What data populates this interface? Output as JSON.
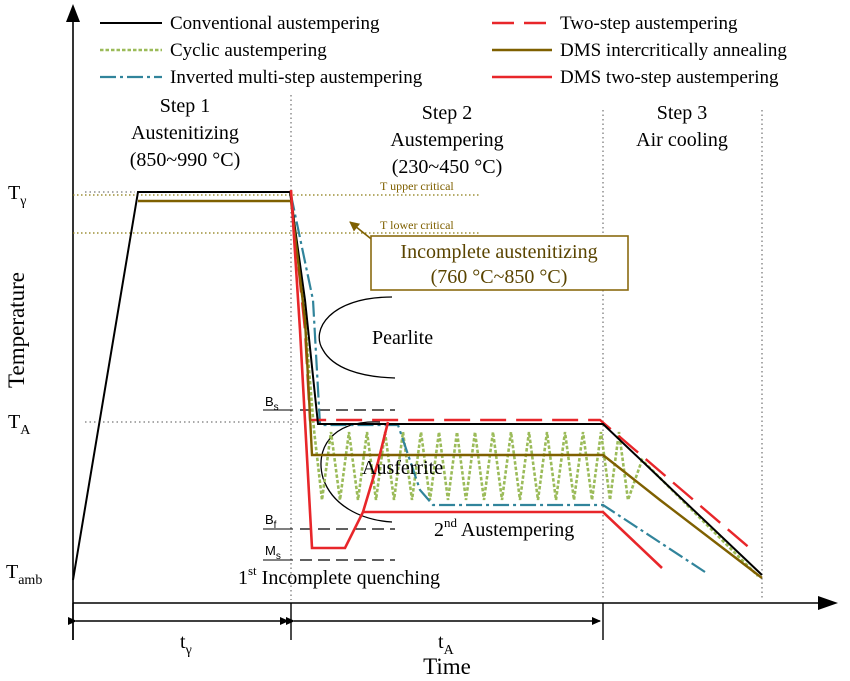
{
  "legend": {
    "conventional": "Conventional austempering",
    "cyclic": "Cyclic austempering",
    "inverted": "Inverted multi-step austempering",
    "two_step": "Two-step austempering",
    "dms_intercritical": "DMS intercritically annealing",
    "dms_two_step": "DMS two-step austempering"
  },
  "steps": {
    "step1": {
      "title": "Step 1",
      "name": "Austenitizing",
      "range": "(850~990 °C)"
    },
    "step2": {
      "title": "Step 2",
      "name": "Austempering",
      "range": "(230~450 °C)"
    },
    "step3": {
      "title": "Step 3",
      "name": "Air cooling"
    }
  },
  "axes": {
    "ylabel": "Temperature",
    "xlabel": "Time",
    "t_gamma_main": "T",
    "t_gamma_sub": "γ",
    "t_a_main": "T",
    "t_a_sub": "A",
    "t_amb_main": "T",
    "t_amb_sub": "amb",
    "time_gamma_main": "t",
    "time_gamma_sub": "γ",
    "time_a_main": "t",
    "time_a_sub": "A"
  },
  "annotations": {
    "upper_critical": "T upper critical",
    "lower_critical": "T lower critical",
    "incomplete_title": "Incomplete austenitizing",
    "incomplete_range": "(760 °C~850 °C)",
    "pearlite": "Pearlite",
    "ausferrite": "Ausferrite",
    "bs_main": "B",
    "bs_sub": "s",
    "bf_main": "B",
    "bf_sub": "f",
    "ms_main": "M",
    "ms_sub": "s",
    "second_sup": "nd",
    "second_num": "2",
    "second_text": " Austempering",
    "first_num": "1",
    "first_sup": "st",
    "first_text": " Incomplete quenching"
  },
  "colors": {
    "conventional": "#000000",
    "cyclic": "#9bbb59",
    "inverted": "#31849b",
    "two_step": "#e8262a",
    "dms_intercritical": "#7f6000",
    "dms_two_step": "#e8262a",
    "critical_line": "#8a7a10",
    "callout_border": "#8a6a10"
  }
}
